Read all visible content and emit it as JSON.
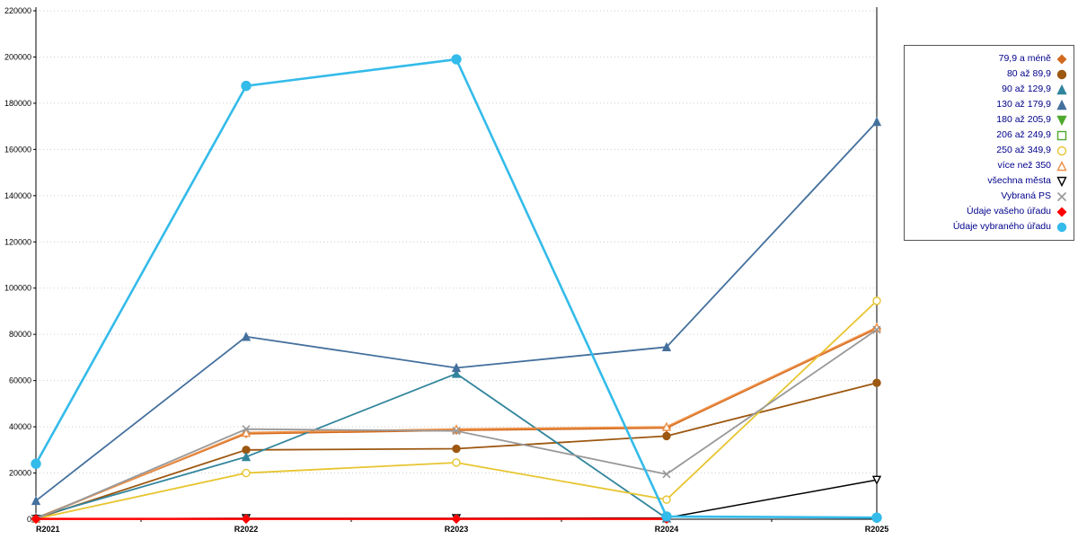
{
  "chart_data": {
    "type": "line",
    "categories": [
      "R2021",
      "R2022",
      "R2023",
      "R2024",
      "R2025"
    ],
    "ylim": [
      0,
      220000
    ],
    "ytick_step": 20000,
    "grid": "horizontal-dotted",
    "legend_position": "top-right-outside",
    "legend_text_color": "#00008B",
    "axis_color": "#000000",
    "grid_color": "#cccccc",
    "series": [
      {
        "name": "79,9 a méně",
        "marker": "diamond",
        "fill": "solid",
        "color": "#D2691E",
        "line_width": 1.8,
        "values": [
          500,
          37000,
          38500,
          39500,
          82500
        ]
      },
      {
        "name": "80 až 89,9",
        "marker": "circle",
        "fill": "solid",
        "color": "#9C5710",
        "line_width": 1.8,
        "values": [
          300,
          30000,
          30500,
          36000,
          59000
        ]
      },
      {
        "name": "90 až 129,9",
        "marker": "triangle-up",
        "fill": "solid",
        "color": "#31859C",
        "line_width": 1.8,
        "values": [
          800,
          27000,
          63000,
          400,
          null
        ]
      },
      {
        "name": "130 až 179,9",
        "marker": "triangle-up",
        "fill": "solid",
        "color": "#44709D",
        "line_width": 1.8,
        "values": [
          8000,
          79000,
          65500,
          74500,
          172000
        ]
      },
      {
        "name": "180 až 205,9",
        "marker": "triangle-down",
        "fill": "solid",
        "color": "#4EA72E",
        "line_width": 1.8,
        "values": []
      },
      {
        "name": "206 až 249,9",
        "marker": "square",
        "fill": "open",
        "color": "#4EA72E",
        "line_width": 1.8,
        "values": []
      },
      {
        "name": "250 až 349,9",
        "marker": "circle",
        "fill": "open",
        "color": "#E7C530",
        "line_width": 1.8,
        "values": [
          200,
          20000,
          24500,
          8500,
          94500
        ]
      },
      {
        "name": "více než 350",
        "marker": "triangle-up",
        "fill": "open",
        "color": "#ED9149",
        "line_width": 1.8,
        "values": [
          200,
          37500,
          39000,
          40000,
          83000
        ]
      },
      {
        "name": "všechna města",
        "marker": "triangle-down",
        "fill": "open",
        "color": "#000000",
        "line_width": 1.5,
        "values": [
          100,
          400,
          400,
          600,
          17000
        ]
      },
      {
        "name": "Vybraná PS",
        "marker": "x",
        "fill": "open",
        "color": "#999999",
        "line_width": 1.8,
        "values": [
          100,
          39000,
          38200,
          19500,
          82000
        ]
      },
      {
        "name": "Údaje vašeho úřadu",
        "marker": "diamond",
        "fill": "solid",
        "color": "#FF0000",
        "line_width": 2.6,
        "marker_size": 4.5,
        "values": [
          150,
          150,
          150,
          150,
          null
        ]
      },
      {
        "name": "Údaje vybraného úřadu",
        "marker": "circle",
        "fill": "solid",
        "color": "#33BBEA",
        "line_width": 2.6,
        "marker_size": 5,
        "values": [
          24000,
          187500,
          199000,
          1200,
          700
        ]
      }
    ]
  }
}
